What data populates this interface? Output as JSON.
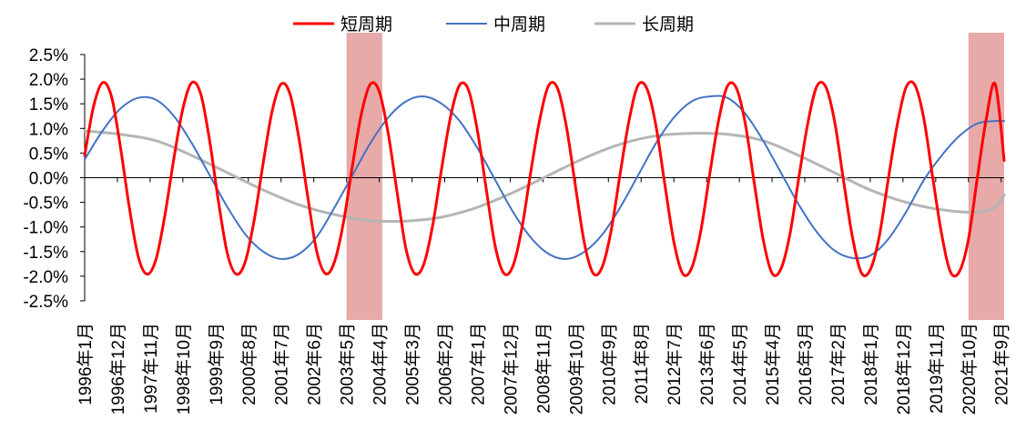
{
  "chart_data": {
    "type": "line",
    "title": "",
    "xlabel": "",
    "ylabel": "",
    "ylim": [
      -0.025,
      0.025
    ],
    "y_ticks": [
      "2.5%",
      "2.0%",
      "1.5%",
      "1.0%",
      "0.5%",
      "0.0%",
      "-0.5%",
      "-1.0%",
      "-1.5%",
      "-2.0%",
      "-2.5%"
    ],
    "x_tick_labels": [
      "1996年1月",
      "1996年12月",
      "1997年11月",
      "1998年10月",
      "1999年9月",
      "2000年8月",
      "2001年7月",
      "2002年6月",
      "2003年5月",
      "2004年4月",
      "2005年3月",
      "2006年2月",
      "2007年1月",
      "2007年12月",
      "2008年11月",
      "2009年10月",
      "2010年9月",
      "2011年8月",
      "2012年7月",
      "2013年6月",
      "2014年5月",
      "2015年4月",
      "2016年3月",
      "2017年2月",
      "2018年1月",
      "2018年12月",
      "2019年11月",
      "2020年10月",
      "2021年9月"
    ],
    "x_start": "1996-01",
    "x_end": "2021-10",
    "legend_position": "top-center",
    "shaded_regions": [
      {
        "start": "2003-05",
        "end": "2004-05",
        "color": "#e8a9a9"
      },
      {
        "start": "2020-10",
        "end": "2021-10",
        "color": "#e8a9a9"
      }
    ],
    "series": [
      {
        "name": "短周期",
        "color": "#ff0000",
        "x": [
          "1996-01",
          "1996-04",
          "1996-07",
          "1996-10",
          "1997-01",
          "1997-04",
          "1997-07",
          "1997-10",
          "1998-01",
          "1998-04",
          "1998-07",
          "1998-10",
          "1999-01",
          "1999-04",
          "1999-07",
          "1999-10",
          "2000-01",
          "2000-04",
          "2000-07",
          "2000-10",
          "2001-01",
          "2001-04",
          "2001-07",
          "2001-10",
          "2002-01",
          "2002-04",
          "2002-07",
          "2002-10",
          "2003-01",
          "2003-04",
          "2003-07",
          "2003-10",
          "2004-01",
          "2004-04",
          "2004-07",
          "2004-10",
          "2005-01",
          "2005-04",
          "2005-07",
          "2005-10",
          "2006-01",
          "2006-04",
          "2006-07",
          "2006-10",
          "2007-01",
          "2007-04",
          "2007-07",
          "2007-10",
          "2008-01",
          "2008-04",
          "2008-07",
          "2008-10",
          "2009-01",
          "2009-04",
          "2009-07",
          "2009-10",
          "2010-01",
          "2010-04",
          "2010-07",
          "2010-10",
          "2011-01",
          "2011-04",
          "2011-07",
          "2011-10",
          "2012-01",
          "2012-04",
          "2012-07",
          "2012-10",
          "2013-01",
          "2013-04",
          "2013-07",
          "2013-10",
          "2014-01",
          "2014-04",
          "2014-07",
          "2014-10",
          "2015-01",
          "2015-04",
          "2015-07",
          "2015-10",
          "2016-01",
          "2016-04",
          "2016-07",
          "2016-10",
          "2017-01",
          "2017-04",
          "2017-07",
          "2017-10",
          "2018-01",
          "2018-04",
          "2018-07",
          "2018-10",
          "2019-01",
          "2019-04",
          "2019-07",
          "2019-10",
          "2020-01",
          "2020-04",
          "2020-07",
          "2020-10",
          "2021-01",
          "2021-04",
          "2021-07",
          "2021-10"
        ],
        "values": [
          0.0045,
          0.0145,
          0.0193,
          0.0165,
          0.0063,
          -0.006,
          -0.016,
          -0.0196,
          -0.0165,
          -0.0075,
          0.004,
          0.014,
          0.0193,
          0.017,
          0.0075,
          -0.005,
          -0.0155,
          -0.0196,
          -0.017,
          -0.0085,
          0.003,
          0.0135,
          0.019,
          0.017,
          0.008,
          -0.004,
          -0.015,
          -0.0195,
          -0.017,
          -0.009,
          0.0025,
          0.013,
          0.019,
          0.0175,
          0.009,
          -0.003,
          -0.0145,
          -0.0195,
          -0.0175,
          -0.0095,
          0.002,
          0.0125,
          0.0188,
          0.0178,
          0.0095,
          -0.0025,
          -0.014,
          -0.0195,
          -0.0178,
          -0.01,
          0.0015,
          0.012,
          0.0188,
          0.018,
          0.01,
          -0.002,
          -0.0135,
          -0.0195,
          -0.018,
          -0.0105,
          0.001,
          0.0118,
          0.0188,
          0.018,
          0.0105,
          -0.0015,
          -0.013,
          -0.0195,
          -0.0183,
          -0.011,
          0.0005,
          0.0115,
          0.0186,
          0.0182,
          0.011,
          -0.001,
          -0.0125,
          -0.0194,
          -0.0185,
          -0.0115,
          0.0,
          0.011,
          0.0185,
          0.0185,
          0.0115,
          -0.0005,
          -0.012,
          -0.0193,
          -0.0187,
          -0.012,
          -0.0005,
          0.0105,
          0.0183,
          0.0188,
          0.012,
          0.0,
          -0.0115,
          -0.0192,
          -0.019,
          -0.0125,
          0.0,
          0.012,
          0.019,
          0.0035
        ]
      },
      {
        "name": "中周期",
        "color": "#4472c4",
        "x": [
          "1996-01",
          "1996-07",
          "1997-01",
          "1997-07",
          "1998-01",
          "1998-07",
          "1999-01",
          "1999-07",
          "2000-01",
          "2000-07",
          "2001-01",
          "2001-07",
          "2002-01",
          "2002-07",
          "2003-01",
          "2003-07",
          "2004-01",
          "2004-07",
          "2005-01",
          "2005-07",
          "2006-01",
          "2006-07",
          "2007-01",
          "2007-07",
          "2008-01",
          "2008-07",
          "2009-01",
          "2009-07",
          "2010-01",
          "2010-07",
          "2011-01",
          "2011-07",
          "2012-01",
          "2012-07",
          "2013-01",
          "2013-07",
          "2014-01",
          "2014-07",
          "2015-01",
          "2015-07",
          "2016-01",
          "2016-07",
          "2017-01",
          "2017-07",
          "2018-01",
          "2018-07",
          "2019-01",
          "2019-07",
          "2020-01",
          "2020-07",
          "2021-01",
          "2021-07",
          "2021-10"
        ],
        "values": [
          0.0037,
          0.0095,
          0.014,
          0.0162,
          0.0158,
          0.0125,
          0.007,
          0.0005,
          -0.006,
          -0.0115,
          -0.015,
          -0.0165,
          -0.0155,
          -0.012,
          -0.006,
          0.0005,
          0.007,
          0.0122,
          0.0155,
          0.0165,
          0.015,
          0.0115,
          0.006,
          -0.0005,
          -0.007,
          -0.0122,
          -0.0155,
          -0.0165,
          -0.015,
          -0.0115,
          -0.006,
          0.0005,
          0.007,
          0.0122,
          0.0155,
          0.0165,
          0.0162,
          0.013,
          0.0075,
          0.001,
          -0.0055,
          -0.011,
          -0.0148,
          -0.0163,
          -0.0158,
          -0.0125,
          -0.007,
          -0.0005,
          0.0045,
          0.0085,
          0.011,
          0.0115,
          0.0115
        ]
      },
      {
        "name": "长周期",
        "color": "#b5b5b5",
        "x": [
          "1996-01",
          "1997-01",
          "1998-01",
          "1999-01",
          "2000-01",
          "2001-01",
          "2002-01",
          "2003-01",
          "2004-01",
          "2005-01",
          "2006-01",
          "2007-01",
          "2008-01",
          "2009-01",
          "2010-01",
          "2011-01",
          "2012-01",
          "2013-01",
          "2014-01",
          "2015-01",
          "2016-01",
          "2017-01",
          "2018-01",
          "2019-01",
          "2020-01",
          "2021-01",
          "2021-07",
          "2021-10"
        ],
        "values": [
          0.0095,
          0.0088,
          0.0075,
          0.0045,
          0.001,
          -0.0025,
          -0.0055,
          -0.0075,
          -0.0087,
          -0.0088,
          -0.008,
          -0.006,
          -0.003,
          0.0005,
          0.004,
          0.0068,
          0.0085,
          0.009,
          0.0088,
          0.0075,
          0.0045,
          0.001,
          -0.0025,
          -0.005,
          -0.0065,
          -0.007,
          -0.006,
          -0.0035
        ]
      }
    ]
  }
}
